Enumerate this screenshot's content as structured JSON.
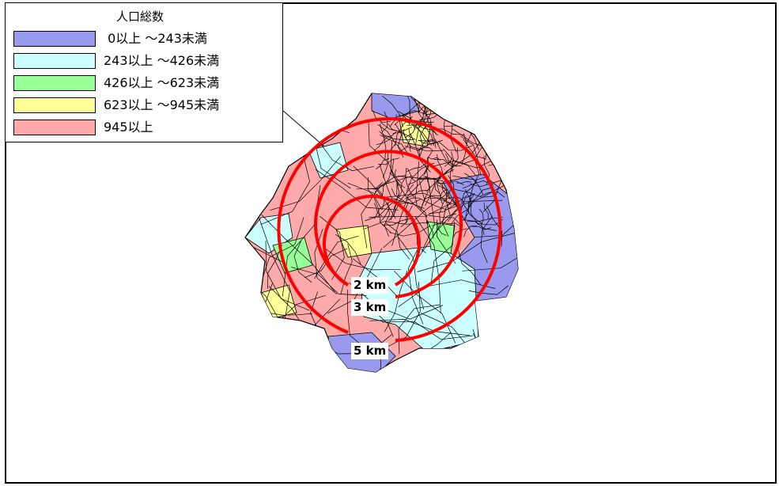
{
  "legend": {
    "title": "人口総数",
    "items": [
      {
        "label": " 0以上 ～243未満",
        "color": "#9999ee"
      },
      {
        "label": "243以上 ～426未満",
        "color": "#ccffff"
      },
      {
        "label": "426以上 ～623未満",
        "color": "#99ff99"
      },
      {
        "label": "623以上 ～945未満",
        "color": "#ffff99"
      },
      {
        "label": "945以上",
        "color": "#ffaaaa"
      }
    ]
  },
  "rings": {
    "color": "#ff0000",
    "labels": [
      "2 km",
      "3 km",
      "5 km"
    ]
  }
}
